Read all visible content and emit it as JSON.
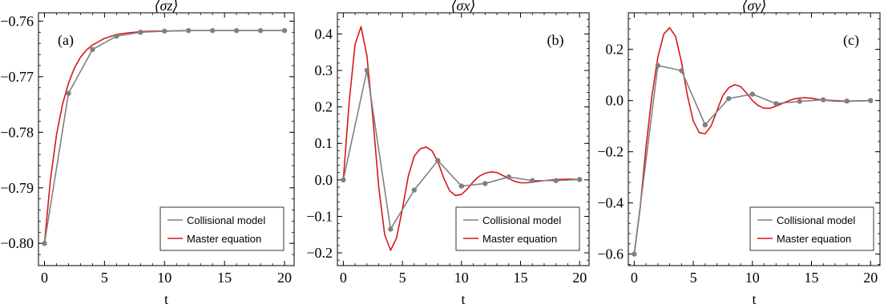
{
  "legend_labels": {
    "collisional": "Collisional model",
    "master": "Master equation"
  },
  "colors": {
    "collisional": "#808080",
    "master": "#d81818",
    "frame": "#000000"
  },
  "chart_data": [
    {
      "type": "line",
      "title": "⟨σz⟩",
      "panel_label": "(a)",
      "xlabel": "t",
      "ylabel": "",
      "xlim": [
        -0.5,
        20.8
      ],
      "ylim": [
        -0.804,
        -0.7585
      ],
      "xticks": [
        0,
        5,
        10,
        15,
        20
      ],
      "yticks": [
        -0.8,
        -0.79,
        -0.78,
        -0.77,
        -0.76
      ],
      "ytick_labels": [
        "−0.80",
        "−0.79",
        "−0.78",
        "−0.77",
        "−0.76"
      ],
      "grid": false,
      "legend_position": "bottom-right",
      "series": [
        {
          "name": "Collisional model",
          "x": [
            0,
            2,
            4,
            6,
            8,
            10,
            12,
            14,
            16,
            18,
            20
          ],
          "y": [
            -0.8,
            -0.773,
            -0.7651,
            -0.7627,
            -0.762,
            -0.7618,
            -0.7617,
            -0.7617,
            -0.7617,
            -0.7617,
            -0.7617
          ]
        },
        {
          "name": "Master equation",
          "x": [
            0,
            0.5,
            1,
            1.5,
            2,
            2.5,
            3,
            3.5,
            4,
            5,
            6,
            7,
            8,
            9,
            10,
            12,
            14,
            16,
            18,
            20
          ],
          "y": [
            -0.8,
            -0.7885,
            -0.7805,
            -0.775,
            -0.7712,
            -0.7684,
            -0.7665,
            -0.7652,
            -0.7643,
            -0.7631,
            -0.7624,
            -0.7621,
            -0.7619,
            -0.7618,
            -0.7618,
            -0.7617,
            -0.7617,
            -0.7617,
            -0.7617,
            -0.7617
          ]
        }
      ]
    },
    {
      "type": "line",
      "title": "⟨σx⟩",
      "panel_label": "(b)",
      "xlabel": "t",
      "ylabel": "",
      "xlim": [
        -0.5,
        20.8
      ],
      "ylim": [
        -0.235,
        0.458
      ],
      "xticks": [
        0,
        5,
        10,
        15,
        20
      ],
      "yticks": [
        -0.2,
        -0.1,
        0.0,
        0.1,
        0.2,
        0.3,
        0.4
      ],
      "ytick_labels": [
        "−0.2",
        "−0.1",
        "0.0",
        "0.1",
        "0.2",
        "0.3",
        "0.4"
      ],
      "grid": false,
      "legend_position": "bottom-right",
      "series": [
        {
          "name": "Collisional model",
          "x": [
            0,
            2,
            4,
            6,
            8,
            10,
            12,
            14,
            16,
            18,
            20
          ],
          "y": [
            0.0,
            0.3,
            -0.135,
            -0.028,
            0.053,
            -0.017,
            -0.01,
            0.008,
            -0.002,
            -0.002,
            0.001
          ]
        },
        {
          "name": "Master equation",
          "x": [
            0,
            0.5,
            1,
            1.5,
            2,
            2.5,
            3,
            3.5,
            4,
            4.5,
            5,
            5.5,
            6,
            6.5,
            7,
            7.5,
            8,
            8.5,
            9,
            9.5,
            10,
            10.5,
            11,
            11.5,
            12,
            12.5,
            13,
            13.5,
            14,
            14.5,
            15,
            15.5,
            16,
            17,
            18,
            19,
            20
          ],
          "y": [
            0.0,
            0.215,
            0.372,
            0.42,
            0.34,
            0.17,
            -0.02,
            -0.15,
            -0.193,
            -0.16,
            -0.08,
            0.01,
            0.065,
            0.085,
            0.09,
            0.08,
            0.05,
            0.005,
            -0.03,
            -0.043,
            -0.04,
            -0.025,
            -0.005,
            0.01,
            0.018,
            0.022,
            0.02,
            0.012,
            0.004,
            -0.004,
            -0.008,
            -0.008,
            -0.006,
            -0.002,
            0.001,
            0.002,
            0.001
          ]
        }
      ]
    },
    {
      "type": "line",
      "title": "⟨σy⟩",
      "panel_label": "(c)",
      "xlabel": "t",
      "ylabel": "",
      "xlim": [
        -0.5,
        20.8
      ],
      "ylim": [
        -0.645,
        0.343
      ],
      "xticks": [
        0,
        5,
        10,
        15,
        20
      ],
      "yticks": [
        -0.6,
        -0.4,
        -0.2,
        0.0,
        0.2
      ],
      "ytick_labels": [
        "−0.6",
        "−0.4",
        "−0.2",
        "0.0",
        "0.2"
      ],
      "grid": false,
      "legend_position": "bottom-right",
      "series": [
        {
          "name": "Collisional model",
          "x": [
            0,
            2,
            4,
            6,
            8,
            10,
            12,
            14,
            16,
            18,
            20
          ],
          "y": [
            -0.6,
            0.137,
            0.117,
            -0.095,
            0.008,
            0.025,
            -0.012,
            -0.003,
            0.003,
            -0.002,
            0.0
          ]
        },
        {
          "name": "Master equation",
          "x": [
            0,
            0.5,
            1,
            1.5,
            2,
            2.5,
            3,
            3.5,
            4,
            4.5,
            5,
            5.5,
            6,
            6.5,
            7,
            7.5,
            8,
            8.5,
            9,
            9.5,
            10,
            10.5,
            11,
            11.5,
            12,
            12.5,
            13,
            13.5,
            14,
            14.5,
            15,
            15.5,
            16,
            17,
            18,
            19,
            20
          ],
          "y": [
            -0.6,
            -0.42,
            -0.18,
            0.02,
            0.17,
            0.26,
            0.285,
            0.25,
            0.15,
            0.02,
            -0.08,
            -0.125,
            -0.13,
            -0.1,
            -0.04,
            0.02,
            0.05,
            0.062,
            0.055,
            0.03,
            0.0,
            -0.02,
            -0.03,
            -0.03,
            -0.022,
            -0.012,
            -0.002,
            0.006,
            0.01,
            0.011,
            0.009,
            0.005,
            0.002,
            -0.002,
            -0.003,
            -0.001,
            0.0
          ]
        }
      ]
    }
  ]
}
